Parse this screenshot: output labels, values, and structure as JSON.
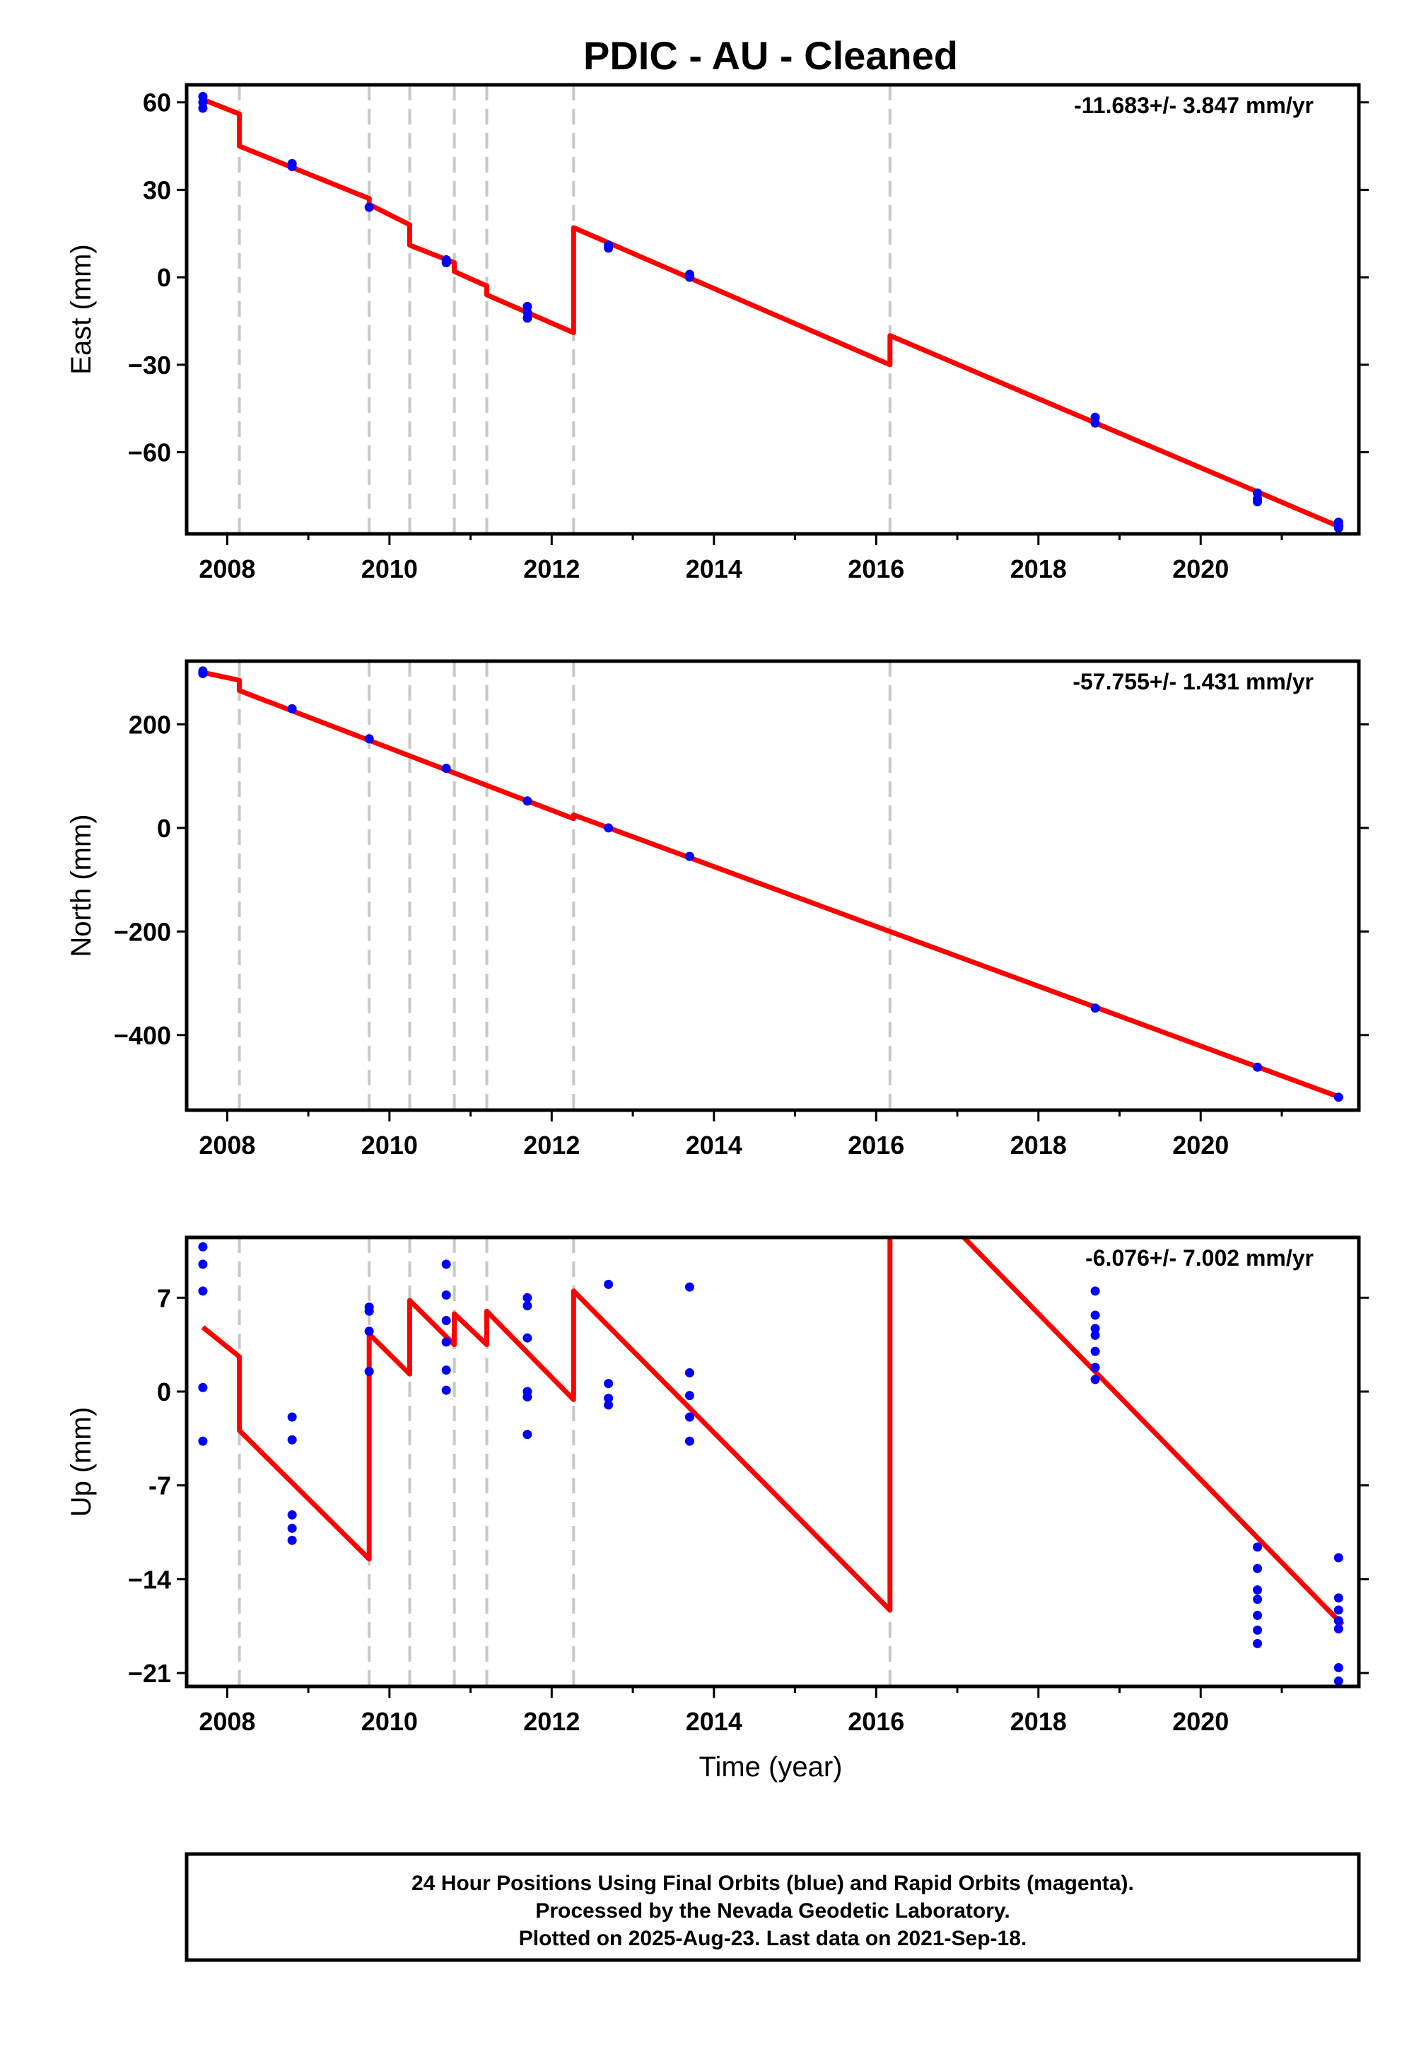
{
  "title": "PDIC  - AU - Cleaned",
  "xlabel": "Time (year)",
  "footer_lines": [
    "24 Hour Positions Using Final Orbits (blue) and Rapid Orbits (magenta).",
    "Processed by the Nevada Geodetic Laboratory.",
    "Plotted on 2025-Aug-23. Last data on 2021-Sep-18."
  ],
  "colors": {
    "data": "#0000ff",
    "model": "#ff0000",
    "steps": "#c8c8c8",
    "frame": "#000000"
  },
  "chart_data": [
    {
      "type": "scatter",
      "ylabel": "East (mm)",
      "rate_label": "-11.683+/- 3.847 mm/yr",
      "xlim": [
        2007.5,
        2021.95
      ],
      "ylim": [
        -88,
        66
      ],
      "yticks": [
        60,
        30,
        0,
        -30,
        -60
      ],
      "ytick_labels": [
        "60",
        "30",
        "0",
        "−30",
        "−60"
      ],
      "xticks": [
        2008,
        2010,
        2012,
        2014,
        2016,
        2018,
        2020
      ],
      "step_lines": [
        2008.15,
        2009.75,
        2010.25,
        2010.8,
        2011.2,
        2012.27,
        2016.17
      ],
      "points": [
        [
          2007.7,
          62
        ],
        [
          2007.7,
          60
        ],
        [
          2007.7,
          58
        ],
        [
          2008.8,
          39
        ],
        [
          2008.8,
          38
        ],
        [
          2009.75,
          24
        ],
        [
          2010.7,
          6
        ],
        [
          2010.7,
          5
        ],
        [
          2011.7,
          -10
        ],
        [
          2011.7,
          -12
        ],
        [
          2011.7,
          -14
        ],
        [
          2012.7,
          11
        ],
        [
          2012.7,
          10
        ],
        [
          2013.7,
          1
        ],
        [
          2013.7,
          0
        ],
        [
          2018.7,
          -48
        ],
        [
          2018.7,
          -50
        ],
        [
          2020.7,
          -74
        ],
        [
          2020.7,
          -76
        ],
        [
          2020.7,
          -77
        ],
        [
          2021.7,
          -84
        ],
        [
          2021.7,
          -85
        ],
        [
          2021.7,
          -86
        ]
      ],
      "model": [
        [
          2007.7,
          61
        ],
        [
          2008.15,
          56
        ],
        [
          2008.15,
          45
        ],
        [
          2009.75,
          27
        ],
        [
          2009.75,
          25
        ],
        [
          2010.25,
          18
        ],
        [
          2010.25,
          11
        ],
        [
          2010.8,
          5
        ],
        [
          2010.8,
          2
        ],
        [
          2011.2,
          -3
        ],
        [
          2011.2,
          -6
        ],
        [
          2012.27,
          -19
        ],
        [
          2012.27,
          17
        ],
        [
          2016.17,
          -30
        ],
        [
          2016.17,
          -20
        ],
        [
          2021.75,
          -86
        ]
      ]
    },
    {
      "type": "scatter",
      "ylabel": "North (mm)",
      "rate_label": "-57.755+/- 1.431 mm/yr",
      "xlim": [
        2007.5,
        2021.95
      ],
      "ylim": [
        -545,
        322
      ],
      "yticks": [
        200,
        0,
        -200,
        -400
      ],
      "ytick_labels": [
        "200",
        "0",
        "−200",
        "−400"
      ],
      "xticks": [
        2008,
        2010,
        2012,
        2014,
        2016,
        2018,
        2020
      ],
      "step_lines": [
        2008.15,
        2009.75,
        2010.25,
        2010.8,
        2011.2,
        2012.27,
        2016.17
      ],
      "points": [
        [
          2007.7,
          303
        ],
        [
          2007.7,
          298
        ],
        [
          2008.8,
          230
        ],
        [
          2009.75,
          172
        ],
        [
          2010.7,
          115
        ],
        [
          2011.7,
          52
        ],
        [
          2012.7,
          0
        ],
        [
          2013.7,
          -55
        ],
        [
          2018.7,
          -348
        ],
        [
          2020.7,
          -462
        ],
        [
          2021.7,
          -520
        ]
      ],
      "model": [
        [
          2007.7,
          300
        ],
        [
          2008.15,
          285
        ],
        [
          2008.15,
          265
        ],
        [
          2012.27,
          18
        ],
        [
          2012.27,
          25
        ],
        [
          2021.75,
          -522
        ]
      ]
    },
    {
      "type": "scatter",
      "ylabel": "Up (mm)",
      "rate_label": "-6.076+/- 7.002 mm/yr",
      "xlim": [
        2007.5,
        2021.95
      ],
      "ylim": [
        -22,
        11.5
      ],
      "yticks": [
        7,
        0,
        -7,
        -14,
        -21
      ],
      "ytick_labels": [
        "7",
        "0",
        "-7",
        "−14",
        "−21"
      ],
      "xticks": [
        2008,
        2010,
        2012,
        2014,
        2016,
        2018,
        2020
      ],
      "step_lines": [
        2008.15,
        2009.75,
        2010.25,
        2010.8,
        2011.2,
        2012.27,
        2016.17
      ],
      "points": [
        [
          2007.7,
          10.8
        ],
        [
          2007.7,
          9.5
        ],
        [
          2007.7,
          7.5
        ],
        [
          2007.7,
          0.3
        ],
        [
          2007.7,
          -3.7
        ],
        [
          2008.8,
          -1.9
        ],
        [
          2008.8,
          -3.6
        ],
        [
          2008.8,
          -9.2
        ],
        [
          2008.8,
          -10.2
        ],
        [
          2008.8,
          -11.1
        ],
        [
          2009.75,
          6.3
        ],
        [
          2009.75,
          6
        ],
        [
          2009.75,
          4.5
        ],
        [
          2009.75,
          1.5
        ],
        [
          2010.7,
          9.5
        ],
        [
          2010.7,
          7.2
        ],
        [
          2010.7,
          5.3
        ],
        [
          2010.7,
          3.7
        ],
        [
          2010.7,
          1.6
        ],
        [
          2010.7,
          0.1
        ],
        [
          2011.7,
          7
        ],
        [
          2011.7,
          6.4
        ],
        [
          2011.7,
          4
        ],
        [
          2011.7,
          0
        ],
        [
          2011.7,
          -0.4
        ],
        [
          2011.7,
          -3.2
        ],
        [
          2012.7,
          8
        ],
        [
          2012.7,
          0.6
        ],
        [
          2012.7,
          -0.5
        ],
        [
          2012.7,
          -1
        ],
        [
          2013.7,
          7.8
        ],
        [
          2013.7,
          1.4
        ],
        [
          2013.7,
          -0.3
        ],
        [
          2013.7,
          -1.9
        ],
        [
          2013.7,
          -3.7
        ],
        [
          2018.7,
          7.5
        ],
        [
          2018.7,
          5.7
        ],
        [
          2018.7,
          4.7
        ],
        [
          2018.7,
          4.2
        ],
        [
          2018.7,
          3
        ],
        [
          2018.7,
          1.8
        ],
        [
          2018.7,
          0.9
        ],
        [
          2020.7,
          -11.6
        ],
        [
          2020.7,
          -13.2
        ],
        [
          2020.7,
          -14.8
        ],
        [
          2020.7,
          -15.5
        ],
        [
          2020.7,
          -16.7
        ],
        [
          2020.7,
          -17.8
        ],
        [
          2020.7,
          -18.8
        ],
        [
          2021.7,
          -12.4
        ],
        [
          2021.7,
          -15.4
        ],
        [
          2021.7,
          -16.3
        ],
        [
          2021.7,
          -17.1
        ],
        [
          2021.7,
          -17.7
        ],
        [
          2021.7,
          -20.6
        ],
        [
          2021.7,
          -21.6
        ]
      ],
      "model": [
        [
          2007.7,
          4.8
        ],
        [
          2008.15,
          2.6
        ],
        [
          2008.15,
          -2.9
        ],
        [
          2009.75,
          -12.5
        ],
        [
          2009.75,
          4.3
        ],
        [
          2010.25,
          1.3
        ],
        [
          2010.25,
          6.8
        ],
        [
          2010.8,
          3.5
        ],
        [
          2010.8,
          5.8
        ],
        [
          2011.2,
          3.5
        ],
        [
          2011.2,
          6
        ],
        [
          2012.27,
          -0.6
        ],
        [
          2012.27,
          7.5
        ],
        [
          2016.17,
          -16.3
        ],
        [
          2016.17,
          12
        ],
        [
          2017,
          12
        ],
        [
          2021.75,
          -17.4
        ]
      ]
    }
  ]
}
